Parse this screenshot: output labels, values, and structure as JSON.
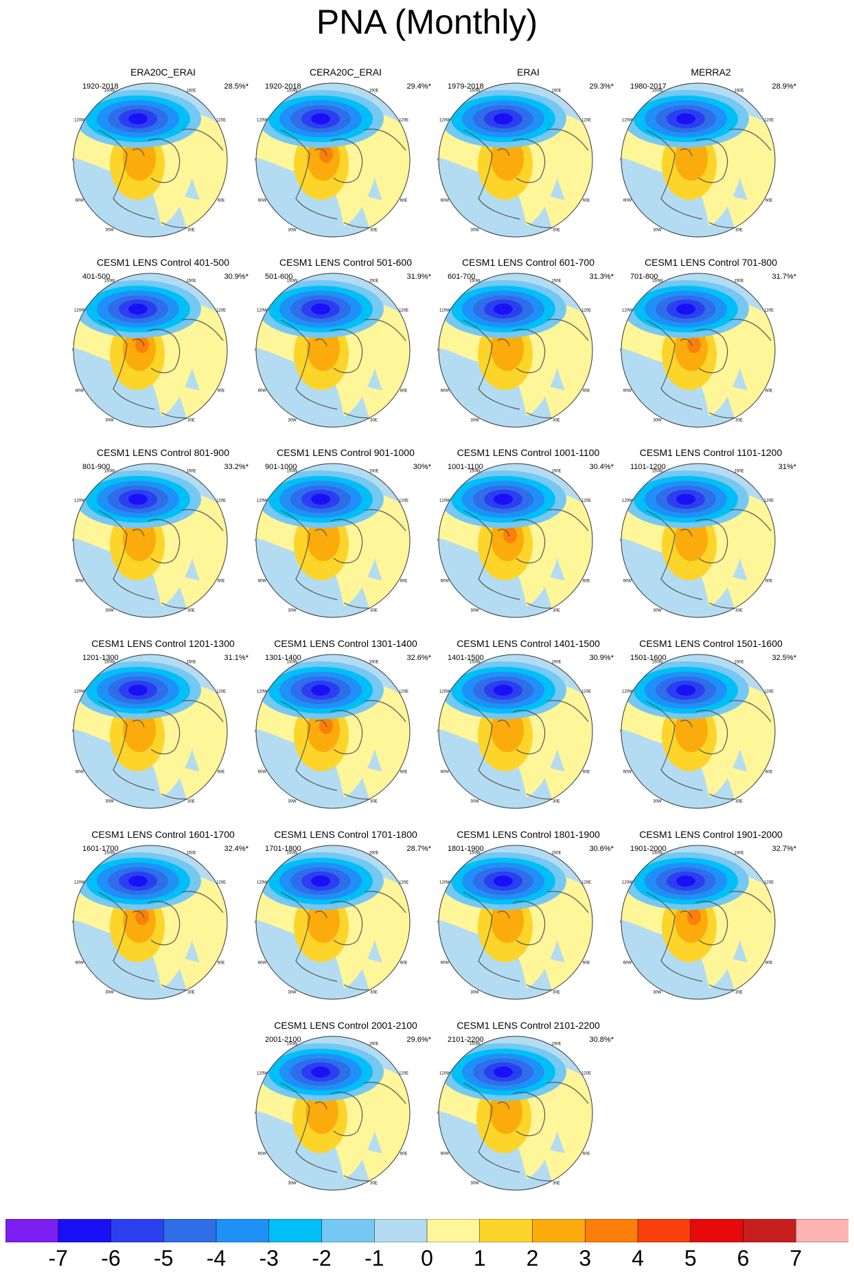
{
  "title": "PNA (Monthly)",
  "map_lon_labels": [
    "180",
    "150W",
    "120W",
    "90W",
    "60W",
    "30W",
    "0",
    "30E",
    "60E",
    "90E",
    "120E",
    "150E"
  ],
  "panels": [
    {
      "title": "ERA20C_ERAI",
      "years": "1920-2018",
      "pct": "28.5%*"
    },
    {
      "title": "CERA20C_ERAI",
      "years": "1920-2018",
      "pct": "29.4%*"
    },
    {
      "title": "ERAI",
      "years": "1979-2018",
      "pct": "29.3%*"
    },
    {
      "title": "MERRA2",
      "years": "1980-2017",
      "pct": "28.9%*"
    },
    {
      "title": "CESM1 LENS Control 401-500",
      "years": "401-500",
      "pct": "30.9%*"
    },
    {
      "title": "CESM1 LENS Control 501-600",
      "years": "501-600",
      "pct": "31.9%*"
    },
    {
      "title": "CESM1 LENS Control 601-700",
      "years": "601-700",
      "pct": "31.3%*"
    },
    {
      "title": "CESM1 LENS Control 701-800",
      "years": "701-800",
      "pct": "31.7%*"
    },
    {
      "title": "CESM1 LENS Control 801-900",
      "years": "801-900",
      "pct": "33.2%*"
    },
    {
      "title": "CESM1 LENS Control 901-1000",
      "years": "901-1000",
      "pct": "30%*"
    },
    {
      "title": "CESM1 LENS Control 1001-1100",
      "years": "1001-1100",
      "pct": "30.4%*"
    },
    {
      "title": "CESM1 LENS Control 1101-1200",
      "years": "1101-1200",
      "pct": "31%*"
    },
    {
      "title": "CESM1 LENS Control 1201-1300",
      "years": "1201-1300",
      "pct": "31.1%*"
    },
    {
      "title": "CESM1 LENS Control 1301-1400",
      "years": "1301-1400",
      "pct": "32.6%*"
    },
    {
      "title": "CESM1 LENS Control 1401-1500",
      "years": "1401-1500",
      "pct": "30.9%*"
    },
    {
      "title": "CESM1 LENS Control 1501-1600",
      "years": "1501-1600",
      "pct": "32.5%*"
    },
    {
      "title": "CESM1 LENS Control 1601-1700",
      "years": "1601-1700",
      "pct": "32.4%*"
    },
    {
      "title": "CESM1 LENS Control 1701-1800",
      "years": "1701-1800",
      "pct": "28.7%*"
    },
    {
      "title": "CESM1 LENS Control 1801-1900",
      "years": "1801-1900",
      "pct": "30.6%*"
    },
    {
      "title": "CESM1 LENS Control 1901-2000",
      "years": "1901-2000",
      "pct": "32.7%*"
    },
    {
      "title": "CESM1 LENS Control 2001-2100",
      "years": "2001-2100",
      "pct": "29.6%*"
    },
    {
      "title": "CESM1 LENS Control 2101-2200",
      "years": "2101-2200",
      "pct": "30.8%*"
    }
  ],
  "colorbar": {
    "colors": [
      "#7b1ff2",
      "#1a10f5",
      "#2b3ff0",
      "#2f6ee8",
      "#1e90f7",
      "#00bff7",
      "#74c8f2",
      "#b3dcf2",
      "#fff599",
      "#fdd429",
      "#fbab0c",
      "#fb7f08",
      "#f93f0c",
      "#e60a0a",
      "#c81e1e",
      "#ffb3b3"
    ],
    "ticks": [
      "-7",
      "-6",
      "-5",
      "-4",
      "-3",
      "-2",
      "-1",
      "0",
      "1",
      "2",
      "3",
      "4",
      "5",
      "6",
      "7"
    ]
  }
}
